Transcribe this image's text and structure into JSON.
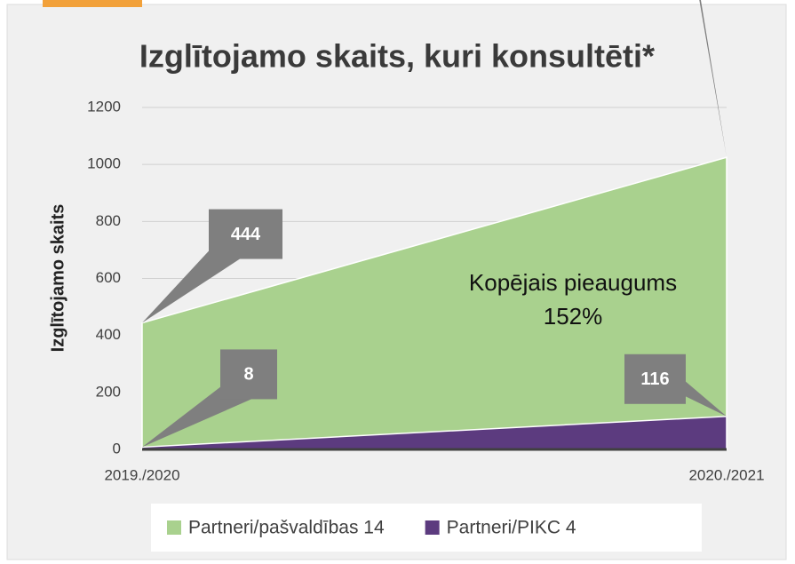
{
  "chart_data": {
    "type": "area",
    "title": "Izglītojamo skaits, kuri konsultēti*",
    "y_label": "Izglītojamo skaits",
    "categories": [
      "2019./2020",
      "2020./2021"
    ],
    "series": [
      {
        "name": "Partneri/pašvaldības 14",
        "color": "#a9d18e",
        "values": [
          444,
          1025
        ]
      },
      {
        "name": "Partneri/PIKC 4",
        "color": "#5c3b7f",
        "values": [
          8,
          116
        ]
      }
    ],
    "annotation": [
      "Kopējais pieaugums",
      "152%"
    ],
    "ylim": [
      0,
      1200
    ],
    "yticks": [
      0,
      200,
      400,
      600,
      800,
      1000,
      1200
    ],
    "grid": true,
    "legend": "bottom"
  }
}
